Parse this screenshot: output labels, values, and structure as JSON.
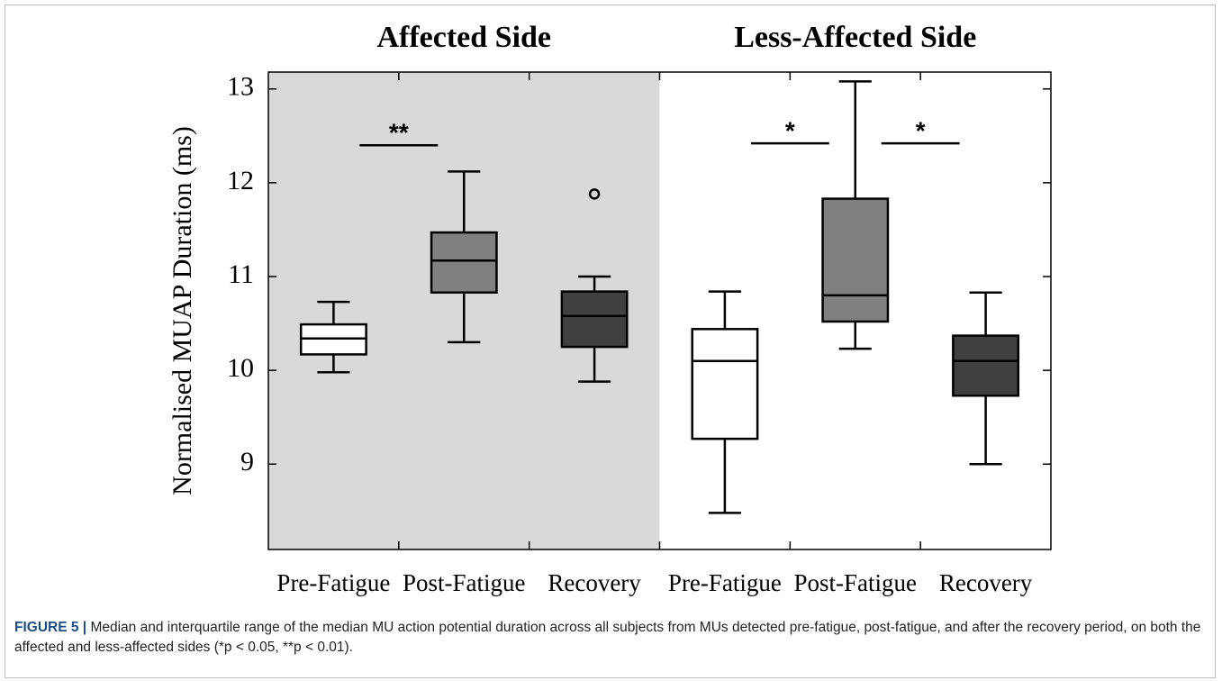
{
  "chart_data": {
    "type": "box",
    "groups": [
      {
        "label": "Affected Side",
        "background": "#d9d9d9"
      },
      {
        "label": "Less-Affected Side",
        "background": "#ffffff"
      }
    ],
    "y_label": "Normalised MUAP Duration (ms)",
    "categories": [
      "Pre-Fatigue",
      "Post-Fatigue",
      "Recovery",
      "Pre-Fatigue",
      "Post-Fatigue",
      "Recovery"
    ],
    "boxes": [
      {
        "whisker_low": 9.98,
        "q1": 10.17,
        "median": 10.34,
        "q3": 10.49,
        "whisker_high": 10.73,
        "outliers": [],
        "color": "#ffffff"
      },
      {
        "whisker_low": 10.3,
        "q1": 10.83,
        "median": 11.17,
        "q3": 11.47,
        "whisker_high": 12.12,
        "outliers": [],
        "color": "#808080"
      },
      {
        "whisker_low": 9.88,
        "q1": 10.25,
        "median": 10.58,
        "q3": 10.84,
        "whisker_high": 11.0,
        "outliers": [
          11.88
        ],
        "color": "#404040"
      },
      {
        "whisker_low": 8.48,
        "q1": 9.27,
        "median": 10.1,
        "q3": 10.44,
        "whisker_high": 10.84,
        "outliers": [],
        "color": "#ffffff"
      },
      {
        "whisker_low": 10.23,
        "q1": 10.52,
        "median": 10.8,
        "q3": 11.83,
        "whisker_high": 13.08,
        "outliers": [],
        "color": "#808080"
      },
      {
        "whisker_low": 9.0,
        "q1": 9.73,
        "median": 10.1,
        "q3": 10.37,
        "whisker_high": 10.83,
        "outliers": [],
        "color": "#404040"
      }
    ],
    "significance": [
      {
        "label": "**",
        "between": [
          0,
          1
        ],
        "value": 12.4
      },
      {
        "label": "*",
        "between": [
          3,
          4
        ],
        "value": 12.42
      },
      {
        "label": "*",
        "between": [
          4,
          5
        ],
        "value": 12.42
      }
    ],
    "ylim": [
      8.09,
      13.18
    ],
    "yticks": [
      9,
      10,
      11,
      12,
      13
    ],
    "caption": {
      "label": "FIGURE 5 |",
      "text": "Median and interquartile range of the median MU action potential duration across all subjects from MUs detected pre-fatigue, post-fatigue, and after the recovery period, on both the affected and less-affected sides (*p < 0.05, **p < 0.01)."
    }
  }
}
